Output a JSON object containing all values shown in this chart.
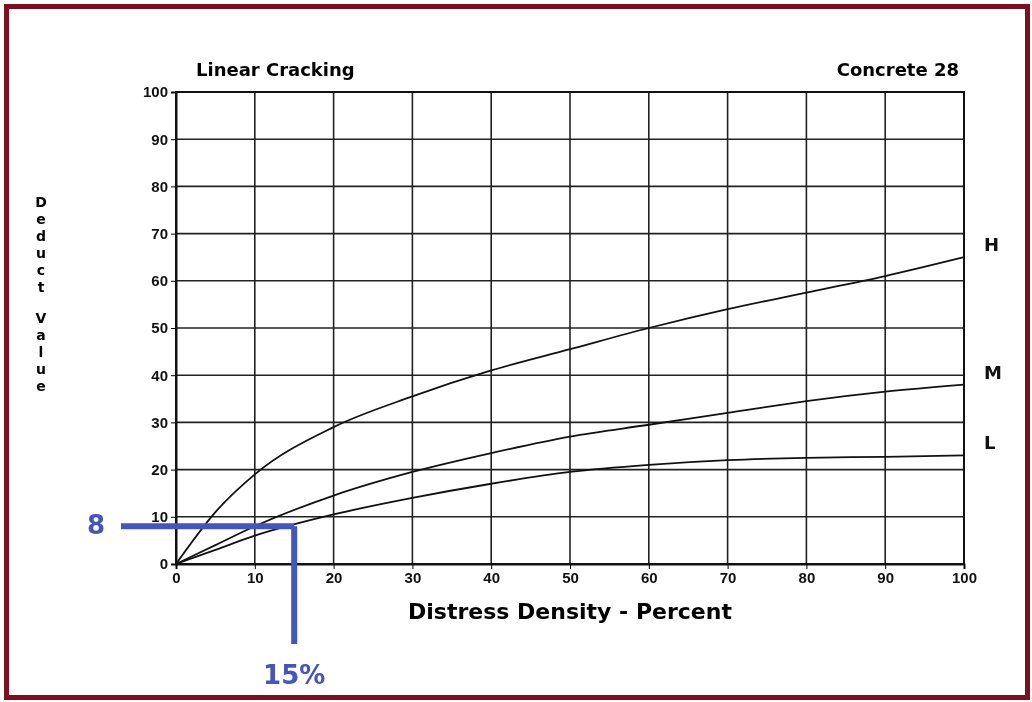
{
  "chart_data": {
    "type": "line",
    "title": "Linear Cracking",
    "subtitle": "Concrete 28",
    "xlabel": "Distress Density - Percent",
    "ylabel": "Deduct Value",
    "x": [
      0,
      5,
      10,
      20,
      30,
      40,
      50,
      60,
      70,
      80,
      90,
      100
    ],
    "series": [
      {
        "name": "H",
        "color": "#111111",
        "values": [
          0,
          11,
          19,
          29,
          35.5,
          41,
          45.5,
          50,
          54,
          57.5,
          61,
          65
        ]
      },
      {
        "name": "M",
        "color": "#111111",
        "values": [
          0,
          4,
          8,
          14.5,
          19.5,
          23.5,
          27,
          29.5,
          32,
          34.5,
          36.5,
          38
        ]
      },
      {
        "name": "L",
        "color": "#111111",
        "values": [
          0,
          3,
          6,
          10.5,
          14,
          17,
          19.5,
          21,
          22,
          22.5,
          22.7,
          23
        ]
      }
    ],
    "xlim": [
      0,
      100
    ],
    "ylim": [
      0,
      100
    ],
    "xticks": [
      0,
      10,
      20,
      30,
      40,
      50,
      60,
      70,
      80,
      90,
      100
    ],
    "yticks": [
      0,
      10,
      20,
      30,
      40,
      50,
      60,
      70,
      80,
      90,
      100
    ],
    "grid": true,
    "marker": "none",
    "line_style": "solid",
    "ref_lines": [
      {
        "axis": "y",
        "value": 8,
        "label": "8",
        "color": "#4455bb"
      },
      {
        "axis": "x",
        "value": 15,
        "label": "15%",
        "color": "#4455bb"
      }
    ]
  }
}
